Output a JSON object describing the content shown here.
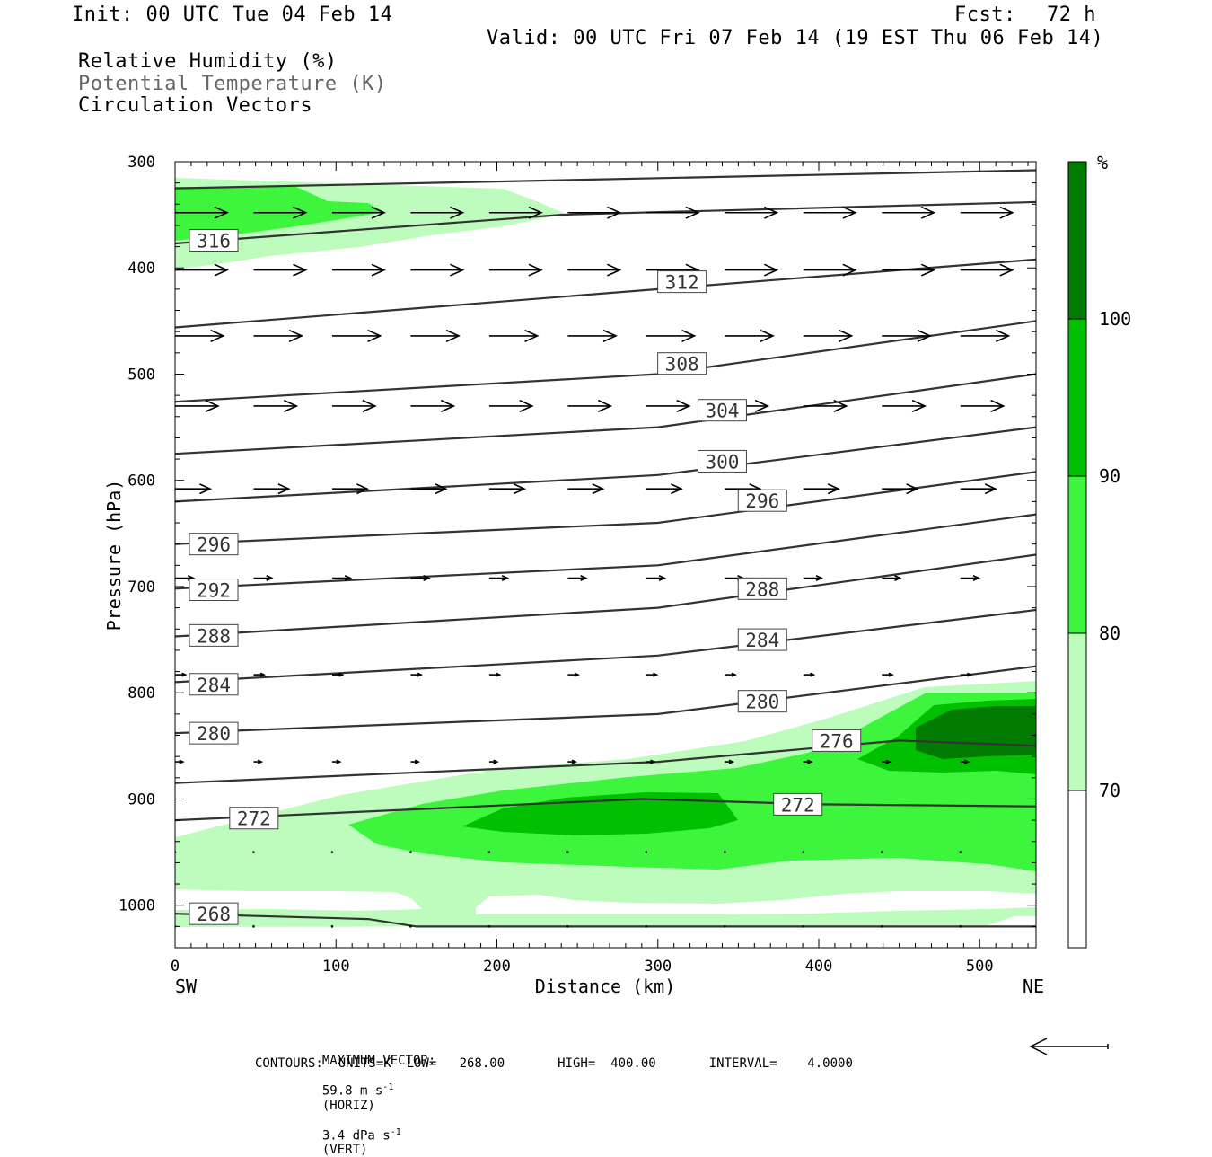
{
  "header": {
    "init": "Init: 00 UTC Tue 04 Feb 14",
    "fcst_label": "Fcst:",
    "fcst_value": "72 h",
    "valid": "Valid: 00 UTC Fri 07 Feb 14 (19 EST Thu 06 Feb 14)",
    "fields": [
      "Relative Humidity (%)",
      "Potential Temperature (K)",
      "Circulation Vectors"
    ]
  },
  "footer": {
    "max_vector_label": "MAXIMUM VECTOR:",
    "max_horiz": "59.8 m s",
    "horiz_tag": "(HORIZ)",
    "max_vert": "3.4 dPa s",
    "vert_tag": "(VERT)",
    "exponent": "-1",
    "contours": "CONTOURS:  UNITS=K  LOW=   268.00       HIGH=  400.00       INTERVAL=    4.0000"
  },
  "colors": {
    "rh_70_80": "#bdfcbd",
    "rh_80_90": "#3df53d",
    "rh_90_100": "#00c000",
    "rh_100": "#007a00",
    "contour": "#333333"
  },
  "chart_data": {
    "type": "cross-section",
    "xlabel": "Distance (km)",
    "ylabel": "Pressure (hPa)",
    "xlim": [
      0,
      535
    ],
    "ylim": [
      1040,
      300
    ],
    "x_ticks": [
      "0",
      "100",
      "200",
      "300",
      "400",
      "500"
    ],
    "y_ticks": [
      "300",
      "400",
      "500",
      "600",
      "700",
      "800",
      "900",
      "1000"
    ],
    "x_ends": {
      "left": "SW",
      "right": "NE"
    },
    "colorbar": {
      "unit": "%",
      "labels": [
        "100",
        "90",
        "80",
        "70"
      ]
    },
    "theta_contours": [
      {
        "x": [
          0,
          535
        ],
        "p": [
          325,
          308
        ]
      },
      {
        "x": [
          0,
          240,
          535
        ],
        "p": [
          377,
          350,
          338
        ],
        "label": "316",
        "label_at": [
          24,
          374
        ]
      },
      {
        "x": [
          0,
          300,
          535
        ],
        "p": [
          456,
          420,
          392
        ],
        "label": "312",
        "label_at": [
          315,
          413
        ]
      },
      {
        "x": [
          0,
          300,
          535
        ],
        "p": [
          526,
          500,
          450
        ],
        "label": "308",
        "label_at": [
          315,
          490
        ]
      },
      {
        "x": [
          0,
          300,
          535
        ],
        "p": [
          575,
          550,
          500
        ],
        "label": "304",
        "label_at": [
          340,
          534
        ]
      },
      {
        "x": [
          0,
          300,
          535
        ],
        "p": [
          620,
          595,
          550
        ],
        "label": "300",
        "label_at": [
          340,
          582
        ]
      },
      {
        "x": [
          0,
          300,
          535
        ],
        "p": [
          660,
          640,
          592
        ],
        "label": "296",
        "label_at": [
          24,
          660
        ]
      },
      {
        "x": [
          0,
          300,
          535
        ],
        "p": [
          702,
          680,
          632
        ],
        "label": "292",
        "label_at": [
          24,
          703
        ]
      },
      {
        "x": [
          0,
          300,
          535
        ],
        "p": [
          747,
          720,
          670
        ],
        "label": "288",
        "label_at": [
          24,
          746
        ]
      },
      {
        "x": [
          0,
          300,
          535
        ],
        "p": [
          790,
          765,
          722
        ],
        "label": "284",
        "label_at": [
          24,
          792
        ]
      },
      {
        "x": [
          0,
          300,
          535
        ],
        "p": [
          838,
          820,
          775
        ],
        "label": "280",
        "label_at": [
          24,
          838
        ]
      },
      {
        "x": [
          0,
          300,
          450,
          535
        ],
        "p": [
          885,
          865,
          845,
          850
        ],
        "label": "276",
        "label_at": [
          411,
          845
        ]
      },
      {
        "x": [
          0,
          290,
          400,
          535
        ],
        "p": [
          920,
          900,
          905,
          907
        ],
        "label": "272",
        "label_at": [
          49,
          918
        ]
      },
      {
        "x": [
          0,
          120,
          150,
          535
        ],
        "p": [
          1008,
          1013,
          1020,
          1020
        ],
        "label": "268",
        "label_at": [
          24,
          1008
        ]
      }
    ],
    "theta_extra_labels": [
      {
        "label": "296",
        "label_at": [
          365,
          619
        ]
      },
      {
        "label": "288",
        "label_at": [
          365,
          702
        ]
      },
      {
        "label": "284",
        "label_at": [
          365,
          750
        ]
      },
      {
        "label": "280",
        "label_at": [
          365,
          808
        ]
      },
      {
        "label": "272",
        "label_at": [
          387,
          905
        ]
      }
    ],
    "vector_levels": [
      {
        "p": 348,
        "u": 40
      },
      {
        "p": 402,
        "u": 40
      },
      {
        "p": 464,
        "u": 37
      },
      {
        "p": 530,
        "u": 33
      },
      {
        "p": 608,
        "u": 27
      },
      {
        "p": 692,
        "u": 14
      },
      {
        "p": 783,
        "u": 8
      },
      {
        "p": 865,
        "u": 6
      },
      {
        "p": 950,
        "u": 2
      },
      {
        "p": 1020,
        "u": 1
      }
    ]
  }
}
